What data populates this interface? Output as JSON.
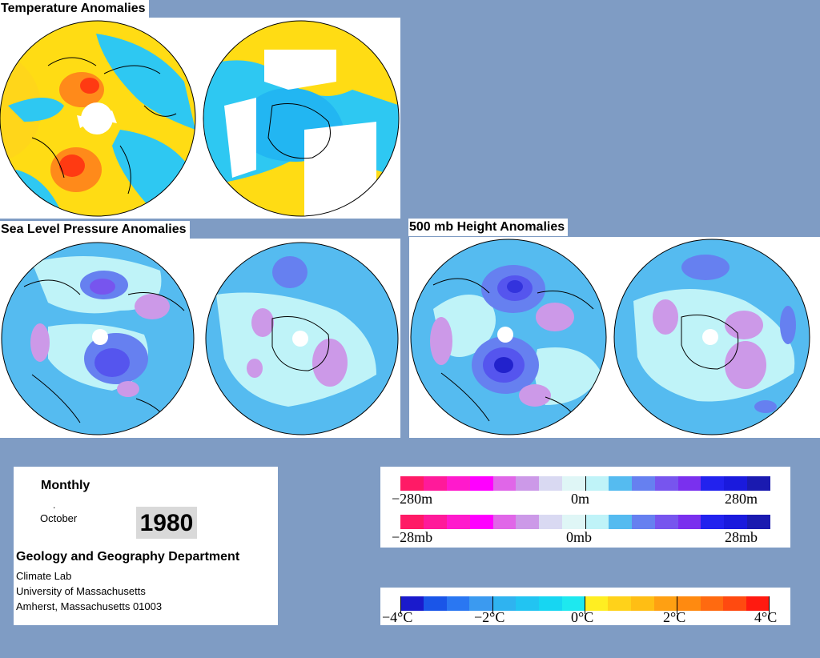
{
  "titles": {
    "temperature": "Temperature Anomalies",
    "slp": "Sea Level Pressure Anomalies",
    "height500": "500 mb Height Anomalies"
  },
  "info": {
    "period": "Monthly",
    "dot": ".",
    "month": "October",
    "year": "1980",
    "department": "Geology and Geography Department",
    "lab": "Climate Lab",
    "university": "University of Massachusetts",
    "address": "Amherst, Massachusetts 01003"
  },
  "legend_height": {
    "colors": [
      "#ff1a66",
      "#ff1a9a",
      "#ff1acc",
      "#ff00ff",
      "#e066e8",
      "#cc99e8",
      "#d9d9f2",
      "#dff6f6",
      "#bff3f8",
      "#55bbf0",
      "#6680f0",
      "#7755ee",
      "#7a30ee",
      "#2222ee",
      "#1a1add",
      "#1a1ab0"
    ],
    "labels": {
      "left": "−280m",
      "center": "0m",
      "right": "280m"
    }
  },
  "legend_pressure": {
    "colors": [
      "#ff1a66",
      "#ff1a9a",
      "#ff1acc",
      "#ff00ff",
      "#e066e8",
      "#cc99e8",
      "#d9d9f2",
      "#dff6f6",
      "#bff3f8",
      "#55bbf0",
      "#6680f0",
      "#7755ee",
      "#7a30ee",
      "#2222ee",
      "#1a1add",
      "#1a1ab0"
    ],
    "labels": {
      "left": "−28mb",
      "center": "0mb",
      "right": "28mb"
    }
  },
  "legend_temperature": {
    "colors": [
      "#1a1acc",
      "#1a55e8",
      "#2a77f2",
      "#3b9af0",
      "#2fb3f0",
      "#22c4f2",
      "#17d6f2",
      "#1ee8ef",
      "#ffee22",
      "#ffd21a",
      "#ffbe14",
      "#ffa012",
      "#ff8a10",
      "#ff6a10",
      "#ff4a10",
      "#ff1a10"
    ],
    "labels": {
      "m4": "−4°C",
      "m2": "−2°C",
      "z": "0°C",
      "p2": "2°C",
      "p4": "4°C"
    }
  }
}
